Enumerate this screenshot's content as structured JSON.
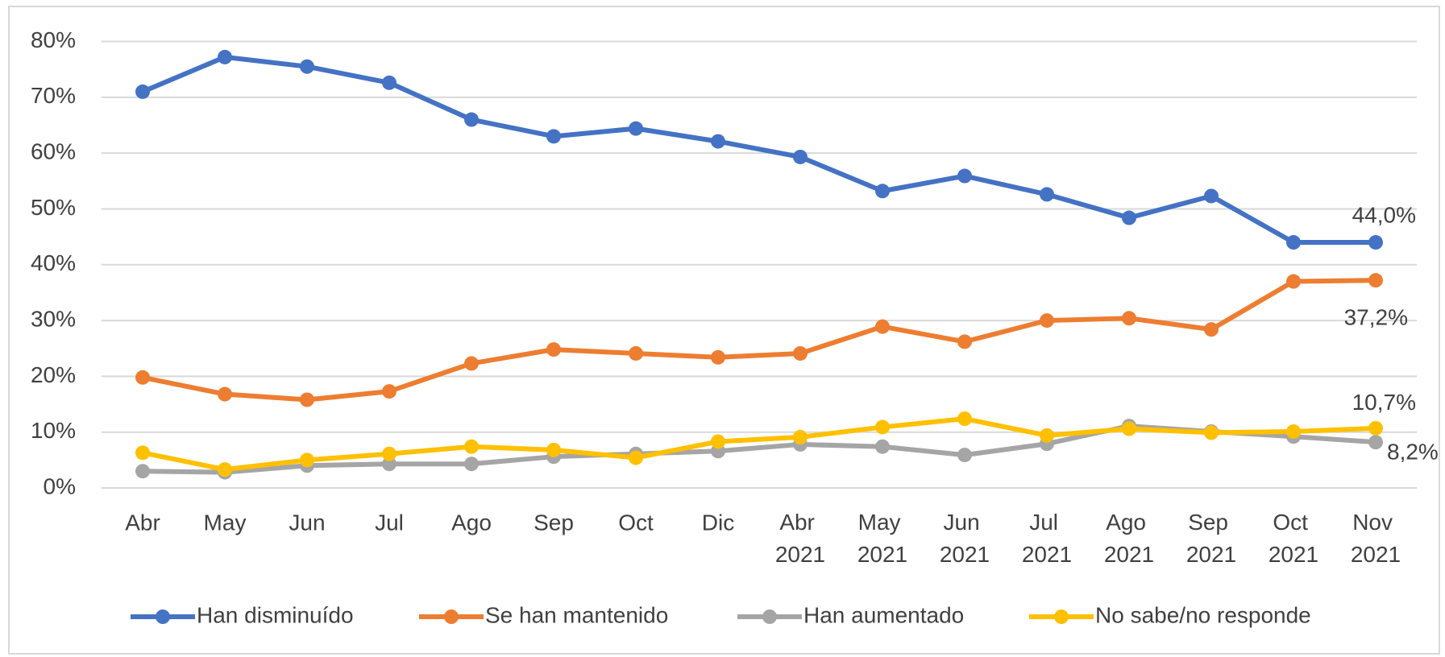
{
  "chart_data": {
    "type": "line",
    "categories": [
      "Abr",
      "May",
      "Jun",
      "Jul",
      "Ago",
      "Sep",
      "Oct",
      "Dic",
      "Abr 2021",
      "May 2021",
      "Jun 2021",
      "Jul 2021",
      "Ago 2021",
      "Sep 2021",
      "Oct 2021",
      "Nov 2021"
    ],
    "series": [
      {
        "name": "Han disminuído",
        "color": "#4472c4",
        "values": [
          71.0,
          77.2,
          75.5,
          72.6,
          66.0,
          63.0,
          64.4,
          62.1,
          59.3,
          53.2,
          55.9,
          52.6,
          48.4,
          52.3,
          44.0,
          44.0
        ],
        "value_labels": [
          null,
          null,
          null,
          null,
          null,
          null,
          null,
          null,
          null,
          null,
          null,
          null,
          null,
          null,
          null,
          "44,0%"
        ]
      },
      {
        "name": "Se han mantenido",
        "color": "#ed7d31",
        "values": [
          19.8,
          16.8,
          15.8,
          17.3,
          22.3,
          24.8,
          24.1,
          23.4,
          24.1,
          28.9,
          26.2,
          30.0,
          30.4,
          28.4,
          37.0,
          37.2
        ],
        "value_labels": [
          null,
          null,
          null,
          null,
          null,
          null,
          null,
          null,
          null,
          null,
          null,
          null,
          null,
          null,
          null,
          "37,2%"
        ]
      },
      {
        "name": "Han aumentado",
        "color": "#a5a5a5",
        "values": [
          3.0,
          2.8,
          4.0,
          4.3,
          4.3,
          5.6,
          6.1,
          6.6,
          7.8,
          7.4,
          5.9,
          7.9,
          11.1,
          10.1,
          9.2,
          8.2
        ],
        "value_labels": [
          null,
          null,
          null,
          null,
          null,
          null,
          null,
          null,
          null,
          null,
          null,
          null,
          null,
          null,
          null,
          "8,2%"
        ]
      },
      {
        "name": "No sabe/no responde",
        "color": "#ffc000",
        "values": [
          6.3,
          3.3,
          5.0,
          6.1,
          7.4,
          6.8,
          5.4,
          8.3,
          9.1,
          10.9,
          12.4,
          9.4,
          10.6,
          9.9,
          10.1,
          10.7
        ],
        "value_labels": [
          null,
          null,
          null,
          null,
          null,
          null,
          null,
          null,
          null,
          null,
          null,
          null,
          null,
          null,
          null,
          "10,7%"
        ]
      }
    ],
    "ylim": [
      0,
      80
    ],
    "yticks": [
      {
        "value": 0,
        "label": "0%"
      },
      {
        "value": 10,
        "label": "10%"
      },
      {
        "value": 20,
        "label": "20%"
      },
      {
        "value": 30,
        "label": "30%"
      },
      {
        "value": 40,
        "label": "40%"
      },
      {
        "value": 50,
        "label": "50%"
      },
      {
        "value": 60,
        "label": "60%"
      },
      {
        "value": 70,
        "label": "70%"
      },
      {
        "value": 80,
        "label": "80%"
      }
    ],
    "grid": true,
    "legend": "bottom"
  }
}
